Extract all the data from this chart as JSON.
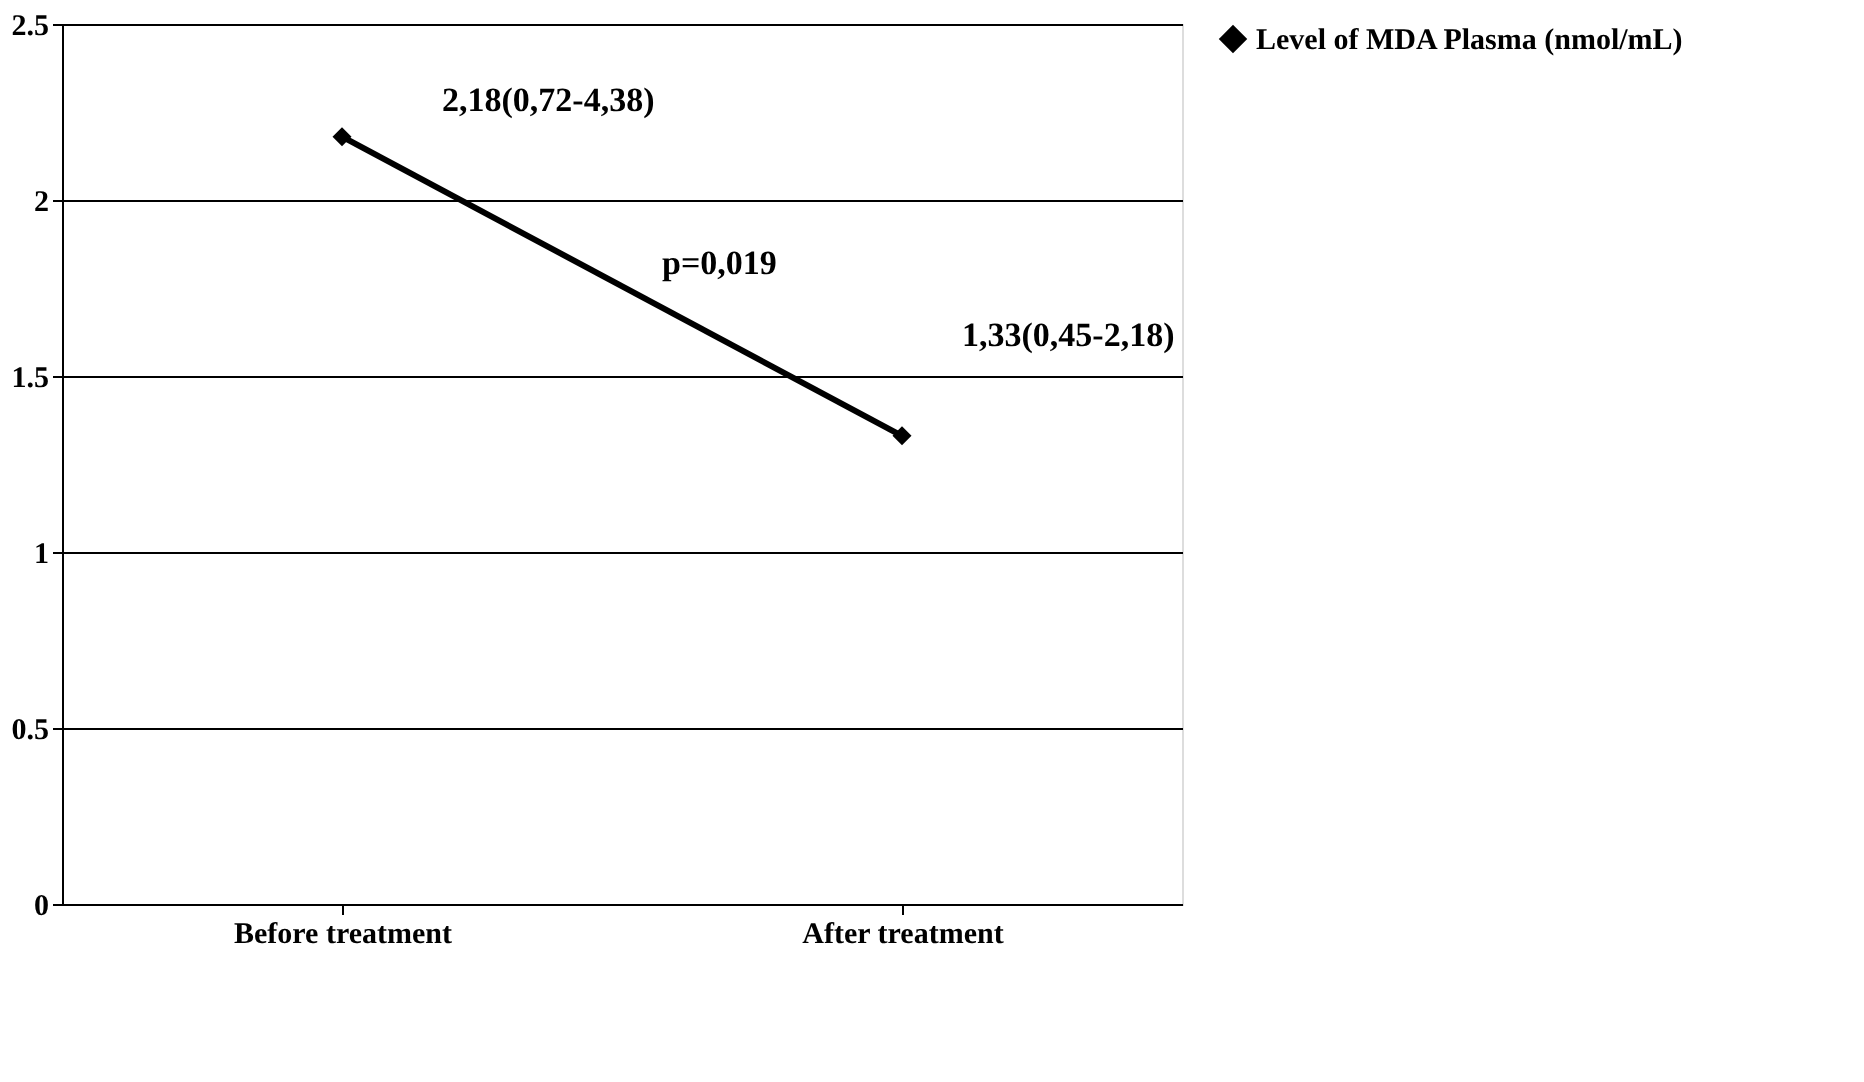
{
  "chart_data": {
    "type": "line",
    "categories": [
      "Before treatment",
      "After treatment"
    ],
    "series": [
      {
        "name": "Level of MDA Plasma (nmol/mL)",
        "color": "#000000",
        "values": [
          2.18,
          1.33
        ]
      }
    ],
    "ylim": [
      0,
      2.5
    ],
    "yticks": [
      0,
      0.5,
      1,
      1.5,
      2,
      2.5
    ],
    "grid": "y",
    "legend": "right",
    "marker": "diamond",
    "line_style": "solid",
    "annotations": [
      {
        "text": "2,18(0,72-4,38)",
        "x": "Before treatment",
        "y": 2.18
      },
      "p=0,019",
      {
        "text": "1,33(0,45-2,18)",
        "x": "After treatment",
        "y": 1.33
      }
    ]
  }
}
